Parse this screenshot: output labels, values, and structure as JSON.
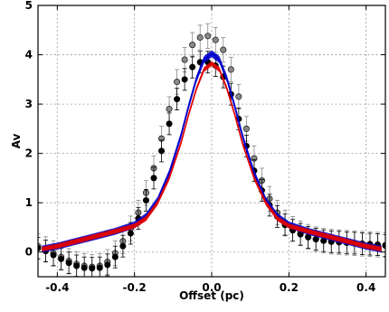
{
  "chart_data": {
    "type": "scatter",
    "title": "",
    "xlabel": "Offset (pc)",
    "ylabel": "Av",
    "xlim": [
      -0.45,
      0.45
    ],
    "ylim": [
      -0.5,
      5
    ],
    "grid": true,
    "x_ticks": [
      -0.4,
      -0.2,
      0.0,
      0.2,
      0.4
    ],
    "x_tick_labels": [
      "-0.4",
      "-0.2",
      "0.0",
      "0.2",
      "0.4"
    ],
    "y_ticks": [
      0,
      1,
      2,
      3,
      4,
      5
    ],
    "y_tick_labels": [
      "0",
      "1",
      "2",
      "3",
      "4",
      "5"
    ],
    "series": [
      {
        "kind": "errorbar-points",
        "color": "#888888",
        "x": [
          -0.45,
          -0.43,
          -0.41,
          -0.39,
          -0.37,
          -0.35,
          -0.33,
          -0.31,
          -0.29,
          -0.27,
          -0.25,
          -0.23,
          -0.21,
          -0.19,
          -0.17,
          -0.15,
          -0.13,
          -0.11,
          -0.09,
          -0.07,
          -0.05,
          -0.03,
          -0.01,
          0.01,
          0.03,
          0.05,
          0.07,
          0.09,
          0.11,
          0.13,
          0.15,
          0.17,
          0.19,
          0.21,
          0.23,
          0.25,
          0.27,
          0.29,
          0.31,
          0.33,
          0.35,
          0.37,
          0.39,
          0.41,
          0.43,
          0.45
        ],
        "y": [
          0.12,
          0.06,
          -0.02,
          -0.1,
          -0.18,
          -0.24,
          -0.28,
          -0.3,
          -0.28,
          -0.2,
          -0.02,
          0.22,
          0.48,
          0.8,
          1.2,
          1.7,
          2.3,
          2.9,
          3.45,
          3.9,
          4.2,
          4.35,
          4.38,
          4.3,
          4.1,
          3.7,
          3.15,
          2.5,
          1.9,
          1.45,
          1.08,
          0.8,
          0.6,
          0.47,
          0.38,
          0.31,
          0.26,
          0.23,
          0.21,
          0.2,
          0.19,
          0.18,
          0.17,
          0.16,
          0.15,
          0.14
        ],
        "err": 0.25
      },
      {
        "kind": "errorbar-points",
        "color": "#000000",
        "x": [
          -0.45,
          -0.43,
          -0.41,
          -0.39,
          -0.37,
          -0.35,
          -0.33,
          -0.31,
          -0.29,
          -0.27,
          -0.25,
          -0.23,
          -0.21,
          -0.19,
          -0.17,
          -0.15,
          -0.13,
          -0.11,
          -0.09,
          -0.07,
          -0.05,
          -0.03,
          -0.01,
          0.01,
          0.03,
          0.05,
          0.07,
          0.09,
          0.11,
          0.13,
          0.15,
          0.17,
          0.19,
          0.21,
          0.23,
          0.25,
          0.27,
          0.29,
          0.31,
          0.33,
          0.35,
          0.37,
          0.39,
          0.41,
          0.43,
          0.45
        ],
        "y": [
          0.08,
          0.02,
          -0.06,
          -0.14,
          -0.22,
          -0.28,
          -0.32,
          -0.33,
          -0.32,
          -0.26,
          -0.1,
          0.12,
          0.38,
          0.68,
          1.05,
          1.5,
          2.05,
          2.6,
          3.1,
          3.5,
          3.75,
          3.85,
          3.85,
          3.78,
          3.55,
          3.2,
          2.7,
          2.15,
          1.65,
          1.25,
          0.95,
          0.72,
          0.55,
          0.44,
          0.36,
          0.3,
          0.26,
          0.23,
          0.21,
          0.2,
          0.19,
          0.18,
          0.17,
          0.16,
          0.15,
          0.13
        ],
        "err": 0.22
      },
      {
        "kind": "line",
        "color": "#0000cc",
        "x": [
          -0.44,
          -0.4,
          -0.35,
          -0.3,
          -0.25,
          -0.2,
          -0.17,
          -0.14,
          -0.11,
          -0.08,
          -0.06,
          -0.04,
          -0.02,
          0.0,
          0.02,
          0.04,
          0.06,
          0.08,
          0.11,
          0.14,
          0.17,
          0.2,
          0.25,
          0.3,
          0.35,
          0.4,
          0.44
        ],
        "y": [
          0.06,
          0.12,
          0.22,
          0.32,
          0.42,
          0.55,
          0.72,
          1.05,
          1.6,
          2.35,
          2.95,
          3.5,
          3.9,
          4.02,
          3.9,
          3.5,
          2.95,
          2.35,
          1.6,
          1.05,
          0.72,
          0.55,
          0.42,
          0.32,
          0.22,
          0.12,
          0.06
        ],
        "band": 0.07
      },
      {
        "kind": "line",
        "color": "#e00000",
        "x": [
          -0.44,
          -0.4,
          -0.35,
          -0.3,
          -0.25,
          -0.2,
          -0.17,
          -0.14,
          -0.11,
          -0.08,
          -0.06,
          -0.04,
          -0.02,
          0.0,
          0.02,
          0.04,
          0.06,
          0.08,
          0.11,
          0.14,
          0.17,
          0.2,
          0.25,
          0.3,
          0.35,
          0.4,
          0.44
        ],
        "y": [
          0.06,
          0.12,
          0.22,
          0.32,
          0.42,
          0.53,
          0.68,
          1.0,
          1.5,
          2.2,
          2.78,
          3.3,
          3.7,
          3.82,
          3.7,
          3.3,
          2.78,
          2.2,
          1.5,
          1.0,
          0.68,
          0.53,
          0.42,
          0.32,
          0.22,
          0.12,
          0.06
        ],
        "band": 0.05
      }
    ]
  }
}
